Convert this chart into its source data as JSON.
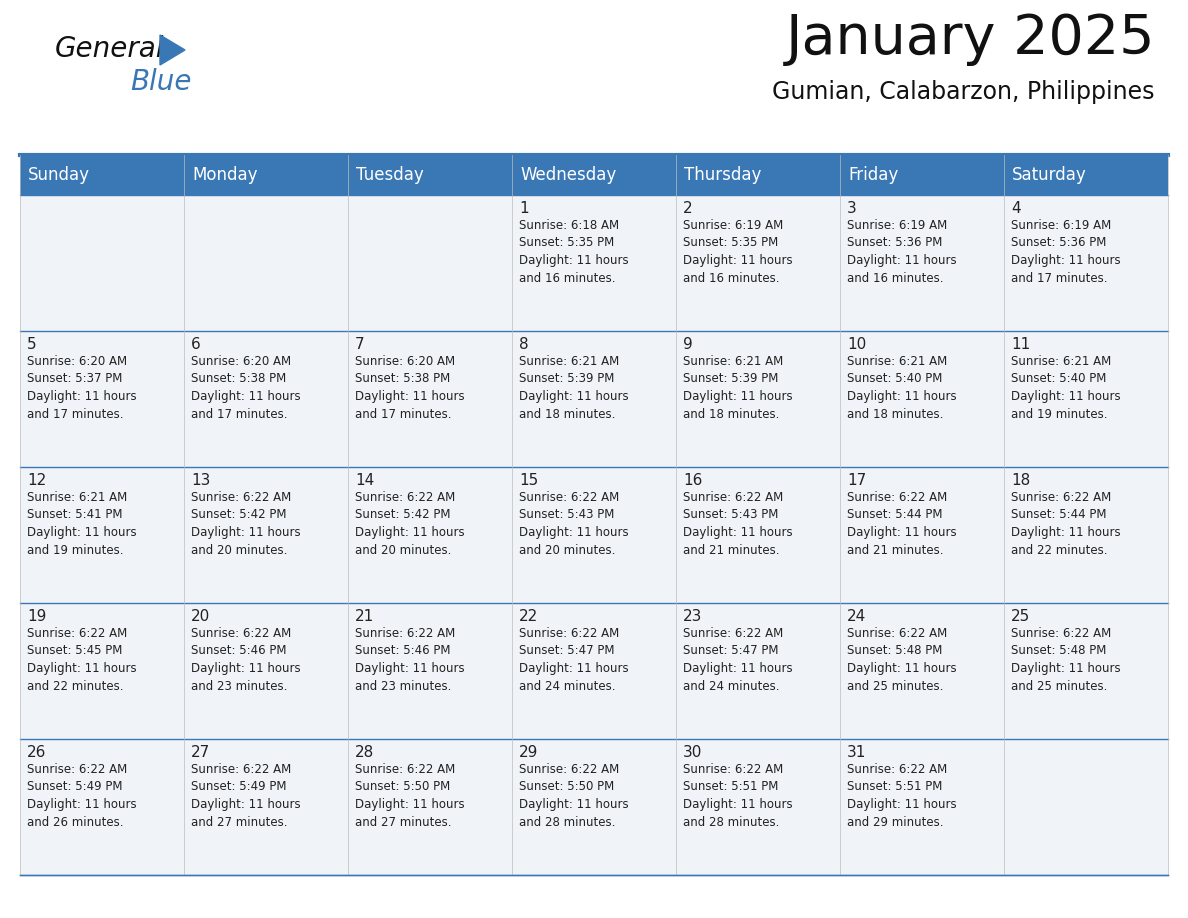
{
  "title": "January 2025",
  "subtitle": "Gumian, Calabarzon, Philippines",
  "days_of_week": [
    "Sunday",
    "Monday",
    "Tuesday",
    "Wednesday",
    "Thursday",
    "Friday",
    "Saturday"
  ],
  "header_bg_color": "#3a78b5",
  "header_text_color": "#ffffff",
  "cell_bg_color": "#f0f4f8",
  "cell_border_color": "#3a78b5",
  "row_border_color": "#3a78b5",
  "day_number_color": "#222222",
  "text_color": "#222222",
  "title_color": "#111111",
  "subtitle_color": "#111111",
  "logo_general_color": "#111111",
  "logo_blue_color": "#3a78b5",
  "logo_triangle_color": "#3a78b5",
  "weeks": [
    [
      {
        "day": 0,
        "text": ""
      },
      {
        "day": 0,
        "text": ""
      },
      {
        "day": 0,
        "text": ""
      },
      {
        "day": 1,
        "text": "Sunrise: 6:18 AM\nSunset: 5:35 PM\nDaylight: 11 hours\nand 16 minutes."
      },
      {
        "day": 2,
        "text": "Sunrise: 6:19 AM\nSunset: 5:35 PM\nDaylight: 11 hours\nand 16 minutes."
      },
      {
        "day": 3,
        "text": "Sunrise: 6:19 AM\nSunset: 5:36 PM\nDaylight: 11 hours\nand 16 minutes."
      },
      {
        "day": 4,
        "text": "Sunrise: 6:19 AM\nSunset: 5:36 PM\nDaylight: 11 hours\nand 17 minutes."
      }
    ],
    [
      {
        "day": 5,
        "text": "Sunrise: 6:20 AM\nSunset: 5:37 PM\nDaylight: 11 hours\nand 17 minutes."
      },
      {
        "day": 6,
        "text": "Sunrise: 6:20 AM\nSunset: 5:38 PM\nDaylight: 11 hours\nand 17 minutes."
      },
      {
        "day": 7,
        "text": "Sunrise: 6:20 AM\nSunset: 5:38 PM\nDaylight: 11 hours\nand 17 minutes."
      },
      {
        "day": 8,
        "text": "Sunrise: 6:21 AM\nSunset: 5:39 PM\nDaylight: 11 hours\nand 18 minutes."
      },
      {
        "day": 9,
        "text": "Sunrise: 6:21 AM\nSunset: 5:39 PM\nDaylight: 11 hours\nand 18 minutes."
      },
      {
        "day": 10,
        "text": "Sunrise: 6:21 AM\nSunset: 5:40 PM\nDaylight: 11 hours\nand 18 minutes."
      },
      {
        "day": 11,
        "text": "Sunrise: 6:21 AM\nSunset: 5:40 PM\nDaylight: 11 hours\nand 19 minutes."
      }
    ],
    [
      {
        "day": 12,
        "text": "Sunrise: 6:21 AM\nSunset: 5:41 PM\nDaylight: 11 hours\nand 19 minutes."
      },
      {
        "day": 13,
        "text": "Sunrise: 6:22 AM\nSunset: 5:42 PM\nDaylight: 11 hours\nand 20 minutes."
      },
      {
        "day": 14,
        "text": "Sunrise: 6:22 AM\nSunset: 5:42 PM\nDaylight: 11 hours\nand 20 minutes."
      },
      {
        "day": 15,
        "text": "Sunrise: 6:22 AM\nSunset: 5:43 PM\nDaylight: 11 hours\nand 20 minutes."
      },
      {
        "day": 16,
        "text": "Sunrise: 6:22 AM\nSunset: 5:43 PM\nDaylight: 11 hours\nand 21 minutes."
      },
      {
        "day": 17,
        "text": "Sunrise: 6:22 AM\nSunset: 5:44 PM\nDaylight: 11 hours\nand 21 minutes."
      },
      {
        "day": 18,
        "text": "Sunrise: 6:22 AM\nSunset: 5:44 PM\nDaylight: 11 hours\nand 22 minutes."
      }
    ],
    [
      {
        "day": 19,
        "text": "Sunrise: 6:22 AM\nSunset: 5:45 PM\nDaylight: 11 hours\nand 22 minutes."
      },
      {
        "day": 20,
        "text": "Sunrise: 6:22 AM\nSunset: 5:46 PM\nDaylight: 11 hours\nand 23 minutes."
      },
      {
        "day": 21,
        "text": "Sunrise: 6:22 AM\nSunset: 5:46 PM\nDaylight: 11 hours\nand 23 minutes."
      },
      {
        "day": 22,
        "text": "Sunrise: 6:22 AM\nSunset: 5:47 PM\nDaylight: 11 hours\nand 24 minutes."
      },
      {
        "day": 23,
        "text": "Sunrise: 6:22 AM\nSunset: 5:47 PM\nDaylight: 11 hours\nand 24 minutes."
      },
      {
        "day": 24,
        "text": "Sunrise: 6:22 AM\nSunset: 5:48 PM\nDaylight: 11 hours\nand 25 minutes."
      },
      {
        "day": 25,
        "text": "Sunrise: 6:22 AM\nSunset: 5:48 PM\nDaylight: 11 hours\nand 25 minutes."
      }
    ],
    [
      {
        "day": 26,
        "text": "Sunrise: 6:22 AM\nSunset: 5:49 PM\nDaylight: 11 hours\nand 26 minutes."
      },
      {
        "day": 27,
        "text": "Sunrise: 6:22 AM\nSunset: 5:49 PM\nDaylight: 11 hours\nand 27 minutes."
      },
      {
        "day": 28,
        "text": "Sunrise: 6:22 AM\nSunset: 5:50 PM\nDaylight: 11 hours\nand 27 minutes."
      },
      {
        "day": 29,
        "text": "Sunrise: 6:22 AM\nSunset: 5:50 PM\nDaylight: 11 hours\nand 28 minutes."
      },
      {
        "day": 30,
        "text": "Sunrise: 6:22 AM\nSunset: 5:51 PM\nDaylight: 11 hours\nand 28 minutes."
      },
      {
        "day": 31,
        "text": "Sunrise: 6:22 AM\nSunset: 5:51 PM\nDaylight: 11 hours\nand 29 minutes."
      },
      {
        "day": 0,
        "text": ""
      }
    ]
  ]
}
